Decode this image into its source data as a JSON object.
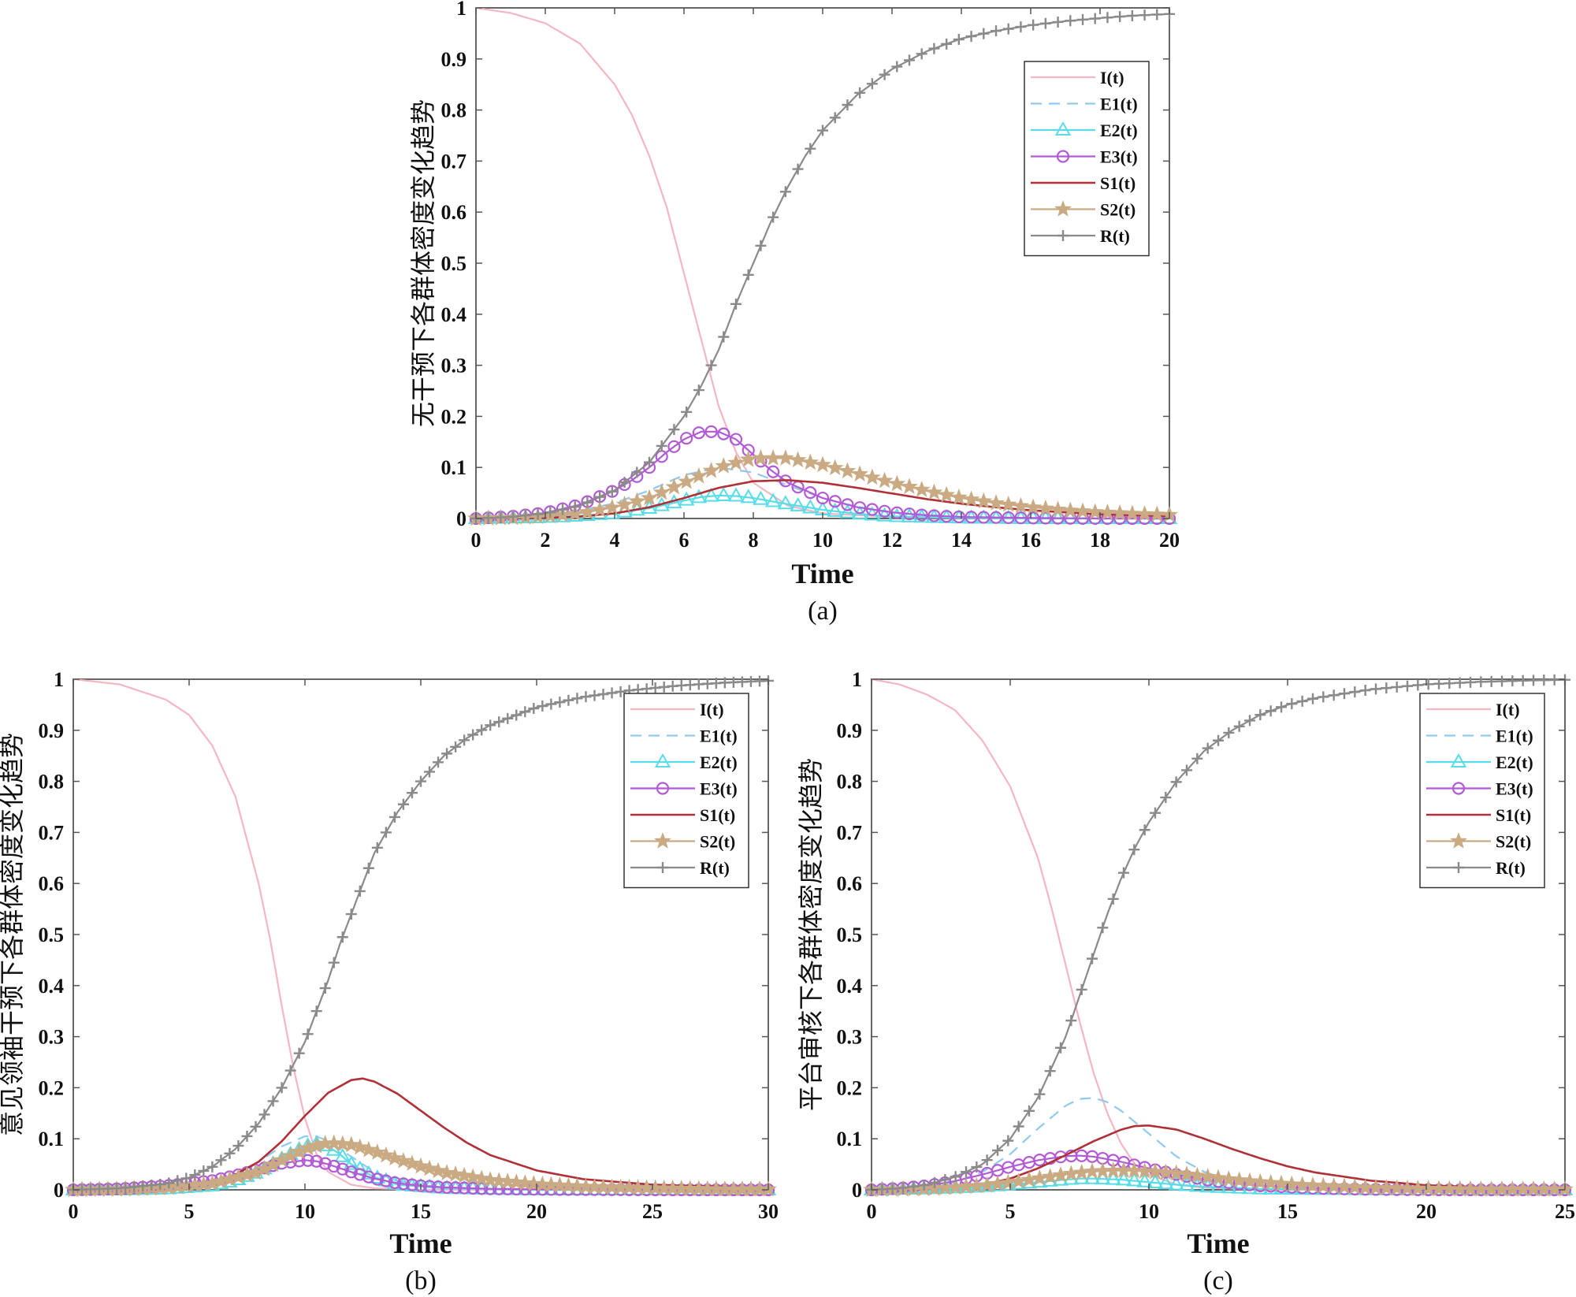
{
  "figure": {
    "series_styles": [
      {
        "key": "I",
        "color": "#f4b6c2",
        "marker": "none",
        "dash": "solid"
      },
      {
        "key": "E1",
        "color": "#8fc9ef",
        "marker": "none",
        "dash": "dashed"
      },
      {
        "key": "E2",
        "color": "#58dce8",
        "marker": "triangle",
        "dash": "solid"
      },
      {
        "key": "E3",
        "color": "#b25ad6",
        "marker": "circle",
        "dash": "solid"
      },
      {
        "key": "S1",
        "color": "#b03038",
        "marker": "none",
        "dash": "solid"
      },
      {
        "key": "S2",
        "color": "#c9aa82",
        "marker": "star",
        "dash": "solid"
      },
      {
        "key": "R",
        "color": "#8a8a8a",
        "marker": "plus",
        "dash": "solid"
      }
    ]
  },
  "chart_data": [
    {
      "id": "a",
      "type": "line",
      "panel_label": "(a)",
      "xlabel": "Time",
      "ylabel": "无干预下各群体密度变化趋势",
      "xlim": [
        0,
        20
      ],
      "ylim": [
        0,
        1
      ],
      "xticks": [
        0,
        2,
        4,
        6,
        8,
        10,
        12,
        14,
        16,
        18,
        20
      ],
      "yticks": [
        0,
        0.1,
        0.2,
        0.3,
        0.4,
        0.5,
        0.6,
        0.7,
        0.8,
        0.9,
        1
      ],
      "ytick_labels": [
        "0",
        "0.1",
        "0.2",
        "0.3",
        "0.4",
        "0.5",
        "0.6",
        "0.7",
        "0.8",
        "0.9",
        "1"
      ],
      "legend_position": "upper-right",
      "grid": false,
      "series": [
        {
          "name": "I(t)",
          "x": [
            0,
            1,
            2,
            3,
            4,
            4.5,
            5,
            5.5,
            6,
            6.5,
            7,
            7.5,
            8,
            9,
            10,
            12,
            14,
            16,
            18,
            20
          ],
          "values": [
            1,
            0.99,
            0.97,
            0.93,
            0.85,
            0.79,
            0.71,
            0.61,
            0.48,
            0.35,
            0.22,
            0.13,
            0.07,
            0.025,
            0.01,
            0.003,
            0.001,
            0,
            0,
            0
          ]
        },
        {
          "name": "E1(t)",
          "x": [
            0,
            1,
            2,
            3,
            4,
            5,
            6,
            7,
            8,
            9,
            10,
            11,
            12,
            14,
            16,
            18,
            20
          ],
          "values": [
            0,
            0.002,
            0.006,
            0.015,
            0.03,
            0.055,
            0.085,
            0.1,
            0.09,
            0.065,
            0.04,
            0.023,
            0.012,
            0.003,
            0.001,
            0,
            0
          ]
        },
        {
          "name": "E2(t)",
          "x": [
            0,
            1,
            2,
            3,
            4,
            5,
            6,
            6.5,
            7,
            7.5,
            8,
            9,
            10,
            11,
            12,
            14,
            16,
            18,
            20
          ],
          "values": [
            0,
            0.001,
            0.002,
            0.005,
            0.01,
            0.02,
            0.035,
            0.042,
            0.045,
            0.044,
            0.04,
            0.028,
            0.017,
            0.009,
            0.004,
            0.001,
            0,
            0,
            0
          ]
        },
        {
          "name": "E3(t)",
          "x": [
            0,
            1,
            2,
            3,
            4,
            4.5,
            5,
            5.5,
            6,
            6.5,
            7,
            7.5,
            8,
            8.5,
            9,
            10,
            11,
            12,
            13,
            14,
            16,
            18,
            20
          ],
          "values": [
            0,
            0.004,
            0.011,
            0.027,
            0.055,
            0.075,
            0.1,
            0.13,
            0.155,
            0.17,
            0.17,
            0.155,
            0.125,
            0.095,
            0.07,
            0.04,
            0.022,
            0.012,
            0.006,
            0.003,
            0.001,
            0,
            0
          ]
        },
        {
          "name": "S1(t)",
          "x": [
            0,
            2,
            3,
            4,
            5,
            6,
            7,
            8,
            9,
            10,
            11,
            12,
            13,
            14,
            15,
            16,
            18,
            20
          ],
          "values": [
            0,
            0.001,
            0.004,
            0.01,
            0.022,
            0.04,
            0.06,
            0.073,
            0.075,
            0.07,
            0.06,
            0.049,
            0.038,
            0.029,
            0.022,
            0.016,
            0.008,
            0.005
          ]
        },
        {
          "name": "S2(t)",
          "x": [
            0,
            1,
            2,
            3,
            4,
            5,
            6,
            7,
            8,
            9,
            10,
            11,
            12,
            13,
            14,
            15,
            16,
            17,
            18,
            19,
            20
          ],
          "values": [
            0,
            0.001,
            0.004,
            0.01,
            0.022,
            0.04,
            0.07,
            0.1,
            0.118,
            0.118,
            0.105,
            0.088,
            0.07,
            0.054,
            0.04,
            0.03,
            0.022,
            0.016,
            0.012,
            0.009,
            0.007
          ]
        },
        {
          "name": "R(t)",
          "x": [
            0,
            1,
            2,
            3,
            4,
            5,
            6,
            6.5,
            7,
            7.5,
            8,
            8.5,
            9,
            9.5,
            10,
            11,
            12,
            13,
            14,
            15,
            16,
            17,
            18,
            19,
            20
          ],
          "values": [
            0,
            0.003,
            0.01,
            0.025,
            0.055,
            0.11,
            0.2,
            0.26,
            0.33,
            0.42,
            0.5,
            0.58,
            0.65,
            0.71,
            0.76,
            0.83,
            0.88,
            0.915,
            0.94,
            0.955,
            0.966,
            0.974,
            0.98,
            0.985,
            0.988
          ]
        }
      ]
    },
    {
      "id": "b",
      "type": "line",
      "panel_label": "(b)",
      "xlabel": "Time",
      "ylabel": "意见领袖干预下各群体密度变化趋势",
      "xlim": [
        0,
        30
      ],
      "ylim": [
        0,
        1
      ],
      "xticks": [
        0,
        5,
        10,
        15,
        20,
        25,
        30
      ],
      "yticks": [
        0,
        0.1,
        0.2,
        0.3,
        0.4,
        0.5,
        0.6,
        0.7,
        0.8,
        0.9,
        1
      ],
      "ytick_labels": [
        "0",
        "0.1",
        "0.2",
        "0.3",
        "0.4",
        "0.5",
        "0.6",
        "0.7",
        "0.8",
        "0.9",
        "1"
      ],
      "legend_position": "upper-right",
      "grid": false,
      "series": [
        {
          "name": "I(t)",
          "x": [
            0,
            2,
            4,
            5,
            6,
            7,
            8,
            8.5,
            9,
            9.5,
            10,
            10.5,
            11,
            12,
            13,
            15,
            20,
            25,
            30
          ],
          "values": [
            1,
            0.99,
            0.96,
            0.93,
            0.87,
            0.77,
            0.6,
            0.49,
            0.36,
            0.24,
            0.14,
            0.07,
            0.035,
            0.01,
            0.003,
            0,
            0,
            0,
            0
          ]
        },
        {
          "name": "E1(t)",
          "x": [
            0,
            2,
            4,
            6,
            7,
            8,
            9,
            10,
            10.5,
            11,
            12,
            13,
            14,
            16,
            20,
            25,
            30
          ],
          "values": [
            0,
            0.001,
            0.005,
            0.015,
            0.03,
            0.055,
            0.085,
            0.105,
            0.105,
            0.095,
            0.065,
            0.035,
            0.017,
            0.004,
            0,
            0,
            0
          ]
        },
        {
          "name": "E2(t)",
          "x": [
            0,
            2,
            4,
            6,
            7,
            8,
            9,
            10,
            10.5,
            11,
            11.5,
            12,
            13,
            14,
            16,
            20,
            25,
            30
          ],
          "values": [
            0,
            0,
            0.002,
            0.008,
            0.018,
            0.035,
            0.06,
            0.085,
            0.09,
            0.085,
            0.07,
            0.05,
            0.025,
            0.01,
            0.003,
            0,
            0,
            0
          ]
        },
        {
          "name": "E3(t)",
          "x": [
            0,
            2,
            4,
            6,
            7,
            8,
            9,
            10,
            10.5,
            11,
            12,
            13,
            14,
            15,
            16,
            18,
            20,
            25,
            30
          ],
          "values": [
            0,
            0.002,
            0.008,
            0.018,
            0.028,
            0.04,
            0.052,
            0.058,
            0.056,
            0.05,
            0.035,
            0.022,
            0.013,
            0.008,
            0.005,
            0.002,
            0.001,
            0,
            0
          ]
        },
        {
          "name": "S1(t)",
          "x": [
            0,
            2,
            4,
            6,
            7,
            8,
            9,
            10,
            11,
            12,
            12.5,
            13,
            14,
            15,
            16,
            17,
            18,
            20,
            22,
            25,
            28,
            30
          ],
          "values": [
            0,
            0.002,
            0.006,
            0.015,
            0.03,
            0.055,
            0.095,
            0.145,
            0.19,
            0.215,
            0.218,
            0.212,
            0.188,
            0.155,
            0.122,
            0.092,
            0.068,
            0.038,
            0.021,
            0.01,
            0.006,
            0.004
          ]
        },
        {
          "name": "S2(t)",
          "x": [
            0,
            2,
            4,
            6,
            8,
            9,
            10,
            11,
            12,
            13,
            14,
            15,
            16,
            18,
            20,
            22,
            25,
            28,
            30
          ],
          "values": [
            0,
            0.001,
            0.004,
            0.012,
            0.035,
            0.058,
            0.08,
            0.092,
            0.088,
            0.075,
            0.06,
            0.046,
            0.034,
            0.019,
            0.011,
            0.006,
            0.003,
            0.001,
            0.001
          ]
        },
        {
          "name": "R(t)",
          "x": [
            0,
            2,
            4,
            5,
            6,
            7,
            8,
            9,
            10,
            10.5,
            11,
            11.5,
            12,
            12.5,
            13,
            14,
            15,
            16,
            17,
            18,
            20,
            22,
            24,
            26,
            28,
            30
          ],
          "values": [
            0,
            0.003,
            0.012,
            0.024,
            0.045,
            0.08,
            0.13,
            0.2,
            0.29,
            0.35,
            0.41,
            0.48,
            0.54,
            0.6,
            0.66,
            0.74,
            0.8,
            0.85,
            0.885,
            0.91,
            0.945,
            0.965,
            0.978,
            0.987,
            0.993,
            0.997
          ]
        }
      ]
    },
    {
      "id": "c",
      "type": "line",
      "panel_label": "(c)",
      "xlabel": "Time",
      "ylabel": "平台审核下各群体密度变化趋势",
      "xlim": [
        0,
        25
      ],
      "ylim": [
        0,
        1
      ],
      "xticks": [
        0,
        5,
        10,
        15,
        20,
        25
      ],
      "yticks": [
        0,
        0.1,
        0.2,
        0.3,
        0.4,
        0.5,
        0.6,
        0.7,
        0.8,
        0.9,
        1
      ],
      "ytick_labels": [
        "0",
        "0.1",
        "0.2",
        "0.3",
        "0.4",
        "0.5",
        "0.6",
        "0.7",
        "0.8",
        "0.9",
        "1"
      ],
      "legend_position": "upper-right",
      "grid": false,
      "series": [
        {
          "name": "I(t)",
          "x": [
            0,
            1,
            2,
            3,
            4,
            5,
            6,
            6.5,
            7,
            7.5,
            8,
            8.5,
            9,
            9.5,
            10,
            11,
            12,
            14,
            16,
            20,
            25
          ],
          "values": [
            1,
            0.99,
            0.97,
            0.94,
            0.88,
            0.79,
            0.65,
            0.55,
            0.44,
            0.33,
            0.23,
            0.15,
            0.09,
            0.05,
            0.03,
            0.01,
            0.004,
            0.001,
            0,
            0,
            0
          ]
        },
        {
          "name": "E1(t)",
          "x": [
            0,
            1,
            2,
            3,
            4,
            5,
            6,
            7,
            7.5,
            8,
            8.5,
            9,
            10,
            11,
            12,
            13,
            14,
            16,
            20,
            25
          ],
          "values": [
            0,
            0.002,
            0.006,
            0.015,
            0.035,
            0.07,
            0.12,
            0.165,
            0.178,
            0.18,
            0.172,
            0.155,
            0.11,
            0.065,
            0.035,
            0.018,
            0.009,
            0.002,
            0,
            0
          ]
        },
        {
          "name": "E2(t)",
          "x": [
            0,
            2,
            4,
            5,
            6,
            7,
            7.5,
            8,
            8.5,
            9,
            10,
            11,
            12,
            14,
            16,
            20,
            25
          ],
          "values": [
            0,
            0.002,
            0.006,
            0.01,
            0.015,
            0.02,
            0.022,
            0.022,
            0.021,
            0.02,
            0.015,
            0.01,
            0.006,
            0.002,
            0.001,
            0,
            0
          ]
        },
        {
          "name": "E3(t)",
          "x": [
            0,
            1,
            2,
            3,
            4,
            5,
            6,
            7,
            7.5,
            8,
            9,
            10,
            11,
            12,
            13,
            14,
            16,
            18,
            20,
            25
          ],
          "values": [
            0,
            0.003,
            0.008,
            0.017,
            0.03,
            0.045,
            0.058,
            0.066,
            0.067,
            0.065,
            0.055,
            0.042,
            0.03,
            0.02,
            0.013,
            0.008,
            0.003,
            0.001,
            0,
            0
          ]
        },
        {
          "name": "S1(t)",
          "x": [
            0,
            2,
            4,
            5,
            6,
            7,
            8,
            9,
            9.5,
            10,
            11,
            12,
            13,
            14,
            15,
            16,
            18,
            20,
            22,
            25
          ],
          "values": [
            0,
            0.002,
            0.01,
            0.022,
            0.042,
            0.068,
            0.095,
            0.118,
            0.125,
            0.126,
            0.118,
            0.1,
            0.08,
            0.062,
            0.046,
            0.034,
            0.018,
            0.009,
            0.005,
            0.002
          ]
        },
        {
          "name": "S2(t)",
          "x": [
            0,
            2,
            4,
            5,
            6,
            7,
            8,
            9,
            10,
            11,
            12,
            13,
            14,
            15,
            16,
            18,
            20,
            22,
            25
          ],
          "values": [
            0,
            0.002,
            0.008,
            0.014,
            0.022,
            0.03,
            0.036,
            0.038,
            0.036,
            0.032,
            0.026,
            0.02,
            0.015,
            0.011,
            0.008,
            0.004,
            0.002,
            0.001,
            0.001
          ]
        },
        {
          "name": "R(t)",
          "x": [
            0,
            1,
            2,
            3,
            4,
            5,
            6,
            6.5,
            7,
            7.5,
            8,
            8.5,
            9,
            9.5,
            10,
            11,
            12,
            13,
            14,
            15,
            16,
            18,
            20,
            22,
            24,
            25
          ],
          "values": [
            0,
            0.003,
            0.01,
            0.025,
            0.05,
            0.1,
            0.18,
            0.24,
            0.3,
            0.38,
            0.46,
            0.54,
            0.61,
            0.67,
            0.72,
            0.8,
            0.86,
            0.9,
            0.93,
            0.95,
            0.963,
            0.98,
            0.99,
            0.995,
            0.998,
            0.999
          ]
        }
      ]
    }
  ]
}
